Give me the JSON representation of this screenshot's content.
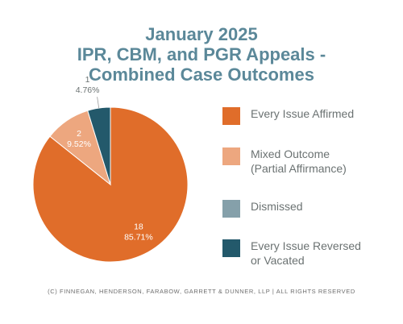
{
  "title_lines": [
    "January 2025",
    "IPR, CBM, and PGR Appeals -",
    "Combined Case Outcomes"
  ],
  "footer": "(c) Finnegan, Henderson, Farabow, Garrett & Dunner, LLP | All Rights Reserved",
  "chart_data": {
    "type": "pie",
    "title": "January 2025 IPR, CBM, and PGR Appeals - Combined Case Outcomes",
    "legend_position": "right",
    "slices": [
      {
        "label": "Every Issue Affirmed",
        "legend_text": "Every Issue Affirmed",
        "value": 18,
        "percent": "85.71%",
        "color": "#e06d2a"
      },
      {
        "label": "Mixed Outcome (Partial Affirmance)",
        "legend_text": "Mixed Outcome\n(Partial Affirmance)",
        "value": 2,
        "percent": "9.52%",
        "color": "#eda77f"
      },
      {
        "label": "Dismissed",
        "legend_text": "Dismissed",
        "value": 0,
        "percent": "",
        "color": "#85a0aa"
      },
      {
        "label": "Every Issue Reversed or Vacated",
        "legend_text": "Every Issue Reversed\nor Vacated",
        "value": 1,
        "percent": "4.76%",
        "color": "#23596b"
      }
    ]
  }
}
